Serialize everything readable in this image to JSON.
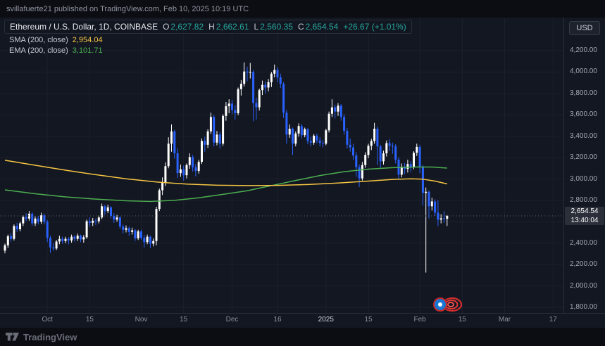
{
  "header": {
    "publish_line": "svillafuerte21 published on TradingView.com, Feb 10, 2025 10:19 UTC"
  },
  "toolbar": {
    "currency_label": "USD"
  },
  "legend": {
    "symbol_title": "Ethereum / U.S. Dollar, 1D, COINBASE",
    "ohlc": {
      "o_label": "O",
      "o": "2,627.82",
      "h_label": "H",
      "h": "2,662.61",
      "l_label": "L",
      "l": "2,560.35",
      "c_label": "C",
      "c": "2,654.54",
      "change": "+26.67 (+1.01%)"
    },
    "sma": {
      "label": "SMA (200, close)",
      "value": "2,954.04"
    },
    "ema": {
      "label": "EMA (200, close)",
      "value": "3,101.71"
    }
  },
  "price_scale": {
    "last_price_label": "2,654.54",
    "countdown": "13:40:04"
  },
  "footer": {
    "brand": "TradingView"
  },
  "chart_data": {
    "type": "candlestick",
    "title": "Ethereum / U.S. Dollar, 1D, COINBASE",
    "last_price": 2654.54,
    "price_axis": {
      "min": 1800,
      "max": 4200,
      "step": 200
    },
    "colors": {
      "up": "#ffffff",
      "down": "#2962ff",
      "sma": "#f5c542",
      "ema": "#4caf50",
      "grid": "#1c202b",
      "priceline": "#5d606b"
    },
    "time_ticks": [
      {
        "text": "Oct",
        "i": 14
      },
      {
        "text": "15",
        "i": 28
      },
      {
        "text": "Nov",
        "i": 45
      },
      {
        "text": "15",
        "i": 59
      },
      {
        "text": "Dec",
        "i": 75
      },
      {
        "text": "16",
        "i": 90
      },
      {
        "text": "2025",
        "i": 106,
        "em": true
      },
      {
        "text": "15",
        "i": 120
      },
      {
        "text": "Feb",
        "i": 137
      },
      {
        "text": "15",
        "i": 151
      },
      {
        "text": "Mar",
        "i": 165
      },
      {
        "text": "17",
        "i": 181
      }
    ],
    "candles": [
      [
        2330,
        2395,
        2305,
        2380
      ],
      [
        2380,
        2480,
        2355,
        2465
      ],
      [
        2465,
        2495,
        2415,
        2440
      ],
      [
        2440,
        2575,
        2425,
        2560
      ],
      [
        2560,
        2590,
        2505,
        2530
      ],
      [
        2530,
        2600,
        2510,
        2585
      ],
      [
        2585,
        2660,
        2560,
        2645
      ],
      [
        2645,
        2680,
        2605,
        2630
      ],
      [
        2630,
        2700,
        2610,
        2675
      ],
      [
        2675,
        2690,
        2565,
        2585
      ],
      [
        2585,
        2650,
        2560,
        2630
      ],
      [
        2630,
        2655,
        2575,
        2600
      ],
      [
        2600,
        2685,
        2580,
        2660
      ],
      [
        2660,
        2675,
        2575,
        2600
      ],
      [
        2600,
        2615,
        2410,
        2450
      ],
      [
        2450,
        2470,
        2310,
        2360
      ],
      [
        2360,
        2400,
        2330,
        2350
      ],
      [
        2350,
        2430,
        2335,
        2415
      ],
      [
        2415,
        2470,
        2390,
        2440
      ],
      [
        2440,
        2460,
        2395,
        2420
      ],
      [
        2420,
        2460,
        2400,
        2440
      ],
      [
        2440,
        2455,
        2390,
        2425
      ],
      [
        2425,
        2480,
        2405,
        2460
      ],
      [
        2460,
        2475,
        2415,
        2440
      ],
      [
        2440,
        2490,
        2420,
        2470
      ],
      [
        2470,
        2480,
        2410,
        2435
      ],
      [
        2435,
        2475,
        2405,
        2455
      ],
      [
        2455,
        2620,
        2440,
        2605
      ],
      [
        2605,
        2640,
        2555,
        2590
      ],
      [
        2590,
        2635,
        2560,
        2610
      ],
      [
        2610,
        2630,
        2570,
        2605
      ],
      [
        2605,
        2660,
        2585,
        2640
      ],
      [
        2640,
        2770,
        2625,
        2745
      ],
      [
        2745,
        2760,
        2665,
        2700
      ],
      [
        2700,
        2760,
        2680,
        2735
      ],
      [
        2735,
        2745,
        2630,
        2655
      ],
      [
        2655,
        2680,
        2590,
        2620
      ],
      [
        2620,
        2665,
        2600,
        2640
      ],
      [
        2640,
        2650,
        2530,
        2555
      ],
      [
        2555,
        2575,
        2490,
        2525
      ],
      [
        2525,
        2565,
        2500,
        2540
      ],
      [
        2540,
        2555,
        2470,
        2505
      ],
      [
        2505,
        2545,
        2480,
        2520
      ],
      [
        2520,
        2530,
        2420,
        2445
      ],
      [
        2445,
        2525,
        2430,
        2510
      ],
      [
        2510,
        2525,
        2430,
        2450
      ],
      [
        2450,
        2475,
        2360,
        2410
      ],
      [
        2410,
        2480,
        2390,
        2460
      ],
      [
        2460,
        2470,
        2355,
        2395
      ],
      [
        2395,
        2445,
        2370,
        2420
      ],
      [
        2420,
        2740,
        2380,
        2720
      ],
      [
        2720,
        2910,
        2700,
        2895
      ],
      [
        2895,
        3015,
        2850,
        2965
      ],
      [
        2965,
        3155,
        2935,
        3120
      ],
      [
        3120,
        3390,
        3100,
        3330
      ],
      [
        3330,
        3510,
        3255,
        3445
      ],
      [
        3445,
        3460,
        3190,
        3240
      ],
      [
        3240,
        3285,
        3010,
        3055
      ],
      [
        3055,
        3135,
        3020,
        3090
      ],
      [
        3090,
        3125,
        2985,
        3035
      ],
      [
        3035,
        3145,
        3005,
        3130
      ],
      [
        3130,
        3240,
        3095,
        3205
      ],
      [
        3205,
        3225,
        3070,
        3110
      ],
      [
        3110,
        3140,
        3025,
        3075
      ],
      [
        3075,
        3180,
        3050,
        3160
      ],
      [
        3160,
        3380,
        3140,
        3355
      ],
      [
        3355,
        3395,
        3255,
        3320
      ],
      [
        3320,
        3465,
        3290,
        3445
      ],
      [
        3445,
        3620,
        3420,
        3580
      ],
      [
        3580,
        3600,
        3305,
        3340
      ],
      [
        3340,
        3450,
        3315,
        3415
      ],
      [
        3415,
        3440,
        3285,
        3330
      ],
      [
        3330,
        3605,
        3310,
        3590
      ],
      [
        3590,
        3720,
        3545,
        3680
      ],
      [
        3680,
        3745,
        3615,
        3705
      ],
      [
        3705,
        3740,
        3605,
        3645
      ],
      [
        3645,
        3690,
        3555,
        3615
      ],
      [
        3615,
        3855,
        3595,
        3840
      ],
      [
        3840,
        3925,
        3780,
        3890
      ],
      [
        3890,
        4090,
        3865,
        4005
      ],
      [
        4005,
        4050,
        3915,
        3995
      ],
      [
        3995,
        4085,
        3940,
        4000
      ],
      [
        4000,
        4020,
        3540,
        3710
      ],
      [
        3710,
        3760,
        3555,
        3670
      ],
      [
        3670,
        3845,
        3640,
        3830
      ],
      [
        3830,
        3920,
        3785,
        3880
      ],
      [
        3880,
        3910,
        3800,
        3855
      ],
      [
        3855,
        3935,
        3820,
        3905
      ],
      [
        3905,
        4000,
        3860,
        3985
      ],
      [
        3985,
        4070,
        3950,
        4020
      ],
      [
        4020,
        4045,
        3905,
        3950
      ],
      [
        3950,
        3985,
        3850,
        3890
      ],
      [
        3890,
        3905,
        3570,
        3620
      ],
      [
        3620,
        3645,
        3330,
        3415
      ],
      [
        3415,
        3510,
        3385,
        3470
      ],
      [
        3470,
        3480,
        3225,
        3330
      ],
      [
        3330,
        3445,
        3305,
        3425
      ],
      [
        3425,
        3520,
        3395,
        3495
      ],
      [
        3495,
        3515,
        3380,
        3410
      ],
      [
        3410,
        3480,
        3390,
        3465
      ],
      [
        3465,
        3475,
        3325,
        3355
      ],
      [
        3355,
        3395,
        3305,
        3340
      ],
      [
        3340,
        3420,
        3320,
        3405
      ],
      [
        3405,
        3425,
        3335,
        3360
      ],
      [
        3360,
        3390,
        3305,
        3335
      ],
      [
        3335,
        3365,
        3295,
        3330
      ],
      [
        3330,
        3470,
        3315,
        3455
      ],
      [
        3455,
        3630,
        3435,
        3610
      ],
      [
        3610,
        3745,
        3580,
        3670
      ],
      [
        3670,
        3695,
        3565,
        3630
      ],
      [
        3630,
        3710,
        3590,
        3685
      ],
      [
        3685,
        3700,
        3545,
        3580
      ],
      [
        3580,
        3605,
        3415,
        3450
      ],
      [
        3450,
        3475,
        3285,
        3320
      ],
      [
        3320,
        3380,
        3255,
        3295
      ],
      [
        3295,
        3330,
        3180,
        3220
      ],
      [
        3220,
        3250,
        3020,
        3110
      ],
      [
        3110,
        3135,
        2925,
        3005
      ],
      [
        3005,
        3160,
        2985,
        3130
      ],
      [
        3130,
        3250,
        3105,
        3225
      ],
      [
        3225,
        3330,
        3195,
        3310
      ],
      [
        3310,
        3375,
        3270,
        3355
      ],
      [
        3355,
        3525,
        3330,
        3470
      ],
      [
        3470,
        3490,
        3130,
        3305
      ],
      [
        3305,
        3320,
        3105,
        3165
      ],
      [
        3165,
        3265,
        3135,
        3240
      ],
      [
        3240,
        3360,
        3210,
        3335
      ],
      [
        3335,
        3375,
        3260,
        3310
      ],
      [
        3310,
        3340,
        3235,
        3305
      ],
      [
        3305,
        3325,
        3145,
        3180
      ],
      [
        3180,
        3205,
        2995,
        3040
      ],
      [
        3040,
        3145,
        3015,
        3115
      ],
      [
        3115,
        3150,
        3045,
        3095
      ],
      [
        3095,
        3180,
        3060,
        3140
      ],
      [
        3140,
        3165,
        3065,
        3110
      ],
      [
        3110,
        3260,
        3090,
        3245
      ],
      [
        3245,
        3330,
        3215,
        3300
      ],
      [
        3300,
        3320,
        3055,
        3115
      ],
      [
        3115,
        3130,
        2750,
        2870
      ],
      [
        2870,
        2920,
        2125,
        2880
      ],
      [
        2880,
        2895,
        2630,
        2745
      ],
      [
        2745,
        2825,
        2705,
        2790
      ],
      [
        2790,
        2810,
        2655,
        2685
      ],
      [
        2685,
        2800,
        2560,
        2620
      ],
      [
        2620,
        2670,
        2585,
        2632
      ],
      [
        2632,
        2700,
        2590,
        2628
      ],
      [
        2627.82,
        2662.61,
        2560.35,
        2654.54
      ]
    ],
    "sma_points": [
      [
        0,
        3175
      ],
      [
        10,
        3128
      ],
      [
        20,
        3082
      ],
      [
        30,
        3040
      ],
      [
        40,
        3002
      ],
      [
        50,
        2972
      ],
      [
        60,
        2952
      ],
      [
        70,
        2942
      ],
      [
        80,
        2938
      ],
      [
        90,
        2940
      ],
      [
        100,
        2948
      ],
      [
        110,
        2962
      ],
      [
        120,
        2980
      ],
      [
        128,
        2996
      ],
      [
        134,
        3002
      ],
      [
        138,
        2998
      ],
      [
        142,
        2980
      ],
      [
        146,
        2954.04
      ]
    ],
    "ema_points": [
      [
        0,
        2898
      ],
      [
        10,
        2862
      ],
      [
        20,
        2832
      ],
      [
        30,
        2812
      ],
      [
        40,
        2796
      ],
      [
        48,
        2790
      ],
      [
        56,
        2800
      ],
      [
        64,
        2824
      ],
      [
        72,
        2856
      ],
      [
        80,
        2890
      ],
      [
        88,
        2938
      ],
      [
        96,
        2986
      ],
      [
        104,
        3032
      ],
      [
        112,
        3068
      ],
      [
        120,
        3092
      ],
      [
        128,
        3106
      ],
      [
        136,
        3112
      ],
      [
        141,
        3112
      ],
      [
        146,
        3101.71
      ]
    ]
  }
}
